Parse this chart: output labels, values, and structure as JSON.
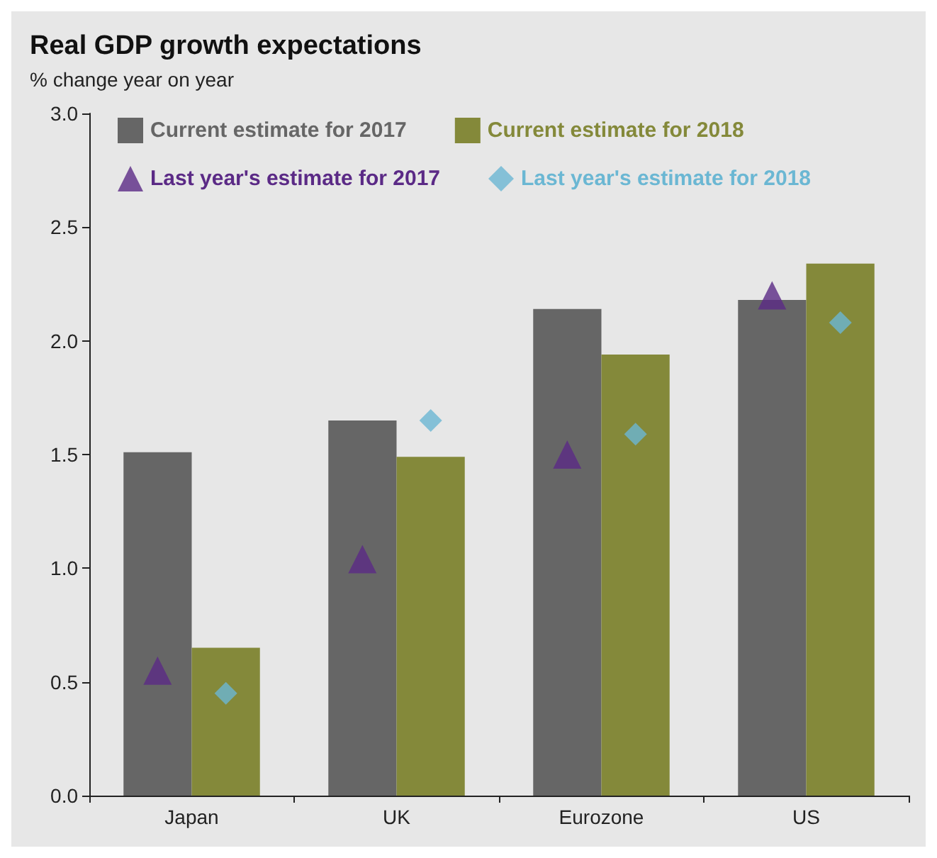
{
  "chart_data": {
    "type": "bar",
    "title": "Real GDP growth expectations",
    "subtitle": "% change year on year",
    "categories": [
      "Japan",
      "UK",
      "Eurozone",
      "US"
    ],
    "series": [
      {
        "name": "Current estimate for 2017",
        "color": "#666666",
        "values": [
          1.51,
          1.65,
          2.14,
          2.18
        ]
      },
      {
        "name": "Current estimate for 2018",
        "color": "#84893a",
        "values": [
          0.65,
          1.49,
          1.94,
          2.34
        ]
      },
      {
        "name": "Last year's estimate for 2017",
        "type": "scatter",
        "marker": "triangle",
        "color": "#5b2a86",
        "x": [
          "Japan",
          "UK",
          "Eurozone",
          "US"
        ],
        "values": [
          0.55,
          1.04,
          1.5,
          2.2
        ]
      },
      {
        "name": "Last year's estimate for 2018",
        "type": "scatter",
        "marker": "diamond",
        "color": "#6bb7d3",
        "x": [
          "Japan",
          "UK",
          "Eurozone",
          "US"
        ],
        "values": [
          0.45,
          1.65,
          1.59,
          2.08
        ]
      }
    ],
    "ylim": [
      0,
      3
    ],
    "yticks": [
      {
        "value": 0,
        "label": "0.0"
      },
      0.5,
      {
        "value": 1,
        "label": "1.0"
      },
      1.5,
      {
        "value": 2,
        "label": "2.0"
      },
      2.5,
      {
        "value": 3,
        "label": "3.0"
      }
    ],
    "grid": false,
    "legend": "top left"
  }
}
